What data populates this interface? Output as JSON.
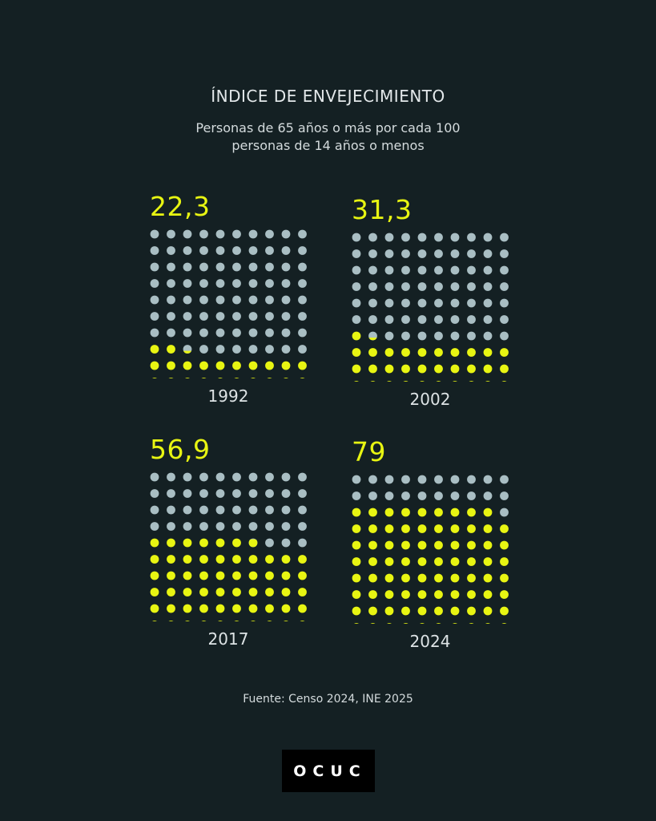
{
  "header": {
    "title": "ÍNDICE DE ENVEJECIMIENTO",
    "subtitle_line1": "Personas de 65 años o más por cada 100",
    "subtitle_line2": "personas de 14 años o menos"
  },
  "colors": {
    "background": "#142023",
    "filled_dot": "#e8f512",
    "empty_dot": "#a9bec3"
  },
  "chart_data": [
    {
      "type": "waffle",
      "year": "1992",
      "value": 22.3,
      "value_label": "22,3",
      "total": 100
    },
    {
      "type": "waffle",
      "year": "2002",
      "value": 31.3,
      "value_label": "31,3",
      "total": 100
    },
    {
      "type": "waffle",
      "year": "2017",
      "value": 56.9,
      "value_label": "56,9",
      "total": 100
    },
    {
      "type": "waffle",
      "year": "2024",
      "value": 79,
      "value_label": "79",
      "total": 100
    }
  ],
  "footer": {
    "source": "Fuente: Censo 2024, INE 2025",
    "logo": "OCUC"
  }
}
